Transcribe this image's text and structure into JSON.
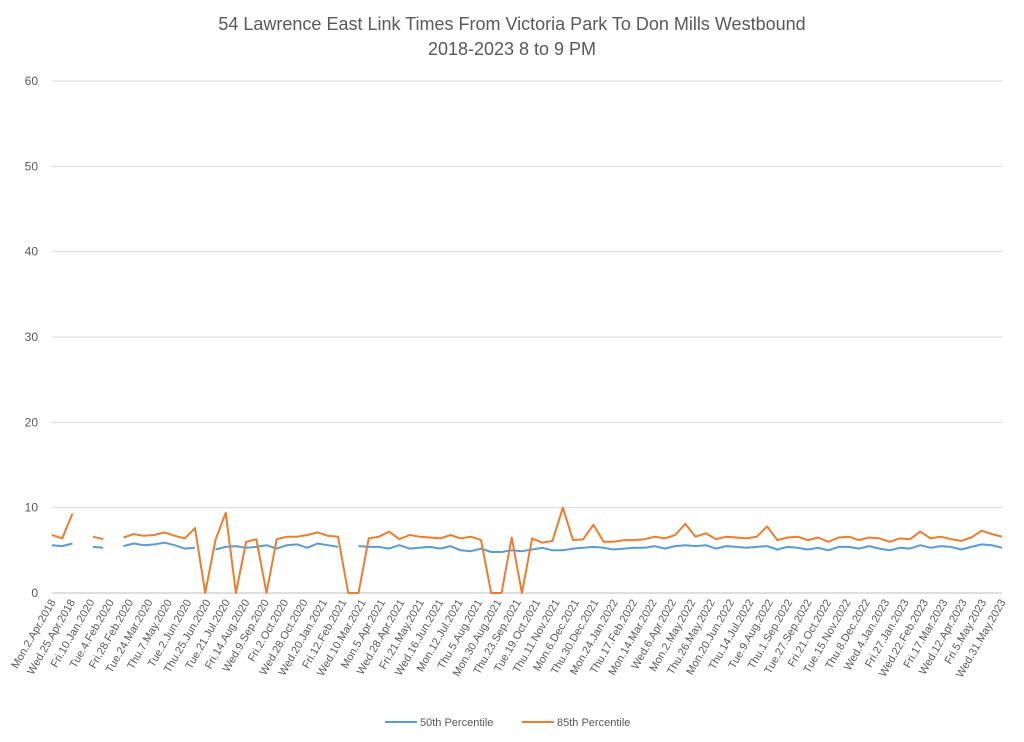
{
  "chart_data": {
    "type": "line",
    "title": "54 Lawrence East Link Times From Victoria Park To Don Mills Westbound",
    "subtitle": "2018-2023 8 to 9 PM",
    "xlabel": "",
    "ylabel": "",
    "ylim": [
      0,
      60
    ],
    "yticks": [
      0,
      10,
      20,
      30,
      40,
      50,
      60
    ],
    "grid": "horizontal",
    "legend_position": "bottom",
    "x_tick_labels": [
      "Mon.2.Apr.2018",
      "Wed.25.Apr.2018",
      "Fri.10.Jan.2020",
      "Tue.4.Feb.2020",
      "Fri.28.Feb.2020",
      "Tue.24.Mar.2020",
      "Thu.7.May.2020",
      "Tue.2.Jun.2020",
      "Thu.25.Jun.2020",
      "Tue.21.Jul.2020",
      "Fri.14.Aug.2020",
      "Wed.9.Sep.2020",
      "Fri.2.Oct.2020",
      "Wed.28.Oct.2020",
      "Wed.20.Jan.2021",
      "Fri.12.Feb.2021",
      "Wed.10.Mar.2021",
      "Mon.5.Apr.2021",
      "Wed.28.Apr.2021",
      "Fri.21.May.2021",
      "Wed.16.Jun.2021",
      "Mon.12.Jul.2021",
      "Thu.5.Aug.2021",
      "Mon.30.Aug.2021",
      "Thu.23.Sep.2021",
      "Tue.19.Oct.2021",
      "Thu.11.Nov.2021",
      "Mon.6.Dec.2021",
      "Thu.30.Dec.2021",
      "Mon.24.Jan.2022",
      "Thu.17.Feb.2022",
      "Mon.14.Mar.2022",
      "Wed.6.Apr.2022",
      "Mon.2.May.2022",
      "Thu.26.May.2022",
      "Mon.20.Jun.2022",
      "Thu.14.Jul.2022",
      "Tue.9.Aug.2022",
      "Thu.1.Sep.2022",
      "Tue.27.Sep.2022",
      "Fri.21.Oct.2022",
      "Tue.15.Nov.2022",
      "Thu.8.Dec.2022",
      "Wed.4.Jan.2023",
      "Fri.27.Jan.2023",
      "Wed.22.Feb.2023",
      "Fri.17.Mar.2023",
      "Wed.12.Apr.2023",
      "Fri.5.May.2023",
      "Wed.31.May.2023"
    ],
    "series": [
      {
        "name": "50th Percentile",
        "color": "#5B9BD5",
        "values": [
          5.6,
          5.5,
          5.8,
          null,
          5.4,
          5.3,
          null,
          5.5,
          5.8,
          5.6,
          5.7,
          5.9,
          5.6,
          5.2,
          5.3,
          null,
          5.1,
          5.4,
          5.5,
          5.3,
          5.4,
          5.6,
          5.2,
          5.6,
          5.7,
          5.3,
          5.8,
          5.6,
          5.4,
          null,
          5.5,
          5.4,
          5.4,
          5.2,
          5.6,
          5.2,
          5.3,
          5.4,
          5.2,
          5.5,
          5.0,
          4.9,
          5.2,
          4.8,
          4.8,
          5.0,
          4.9,
          5.1,
          5.3,
          5.0,
          5.0,
          5.2,
          5.3,
          5.4,
          5.3,
          5.1,
          5.2,
          5.3,
          5.3,
          5.5,
          5.2,
          5.5,
          5.6,
          5.5,
          5.6,
          5.2,
          5.5,
          5.4,
          5.3,
          5.4,
          5.5,
          5.1,
          5.4,
          5.3,
          5.1,
          5.3,
          5.0,
          5.4,
          5.4,
          5.2,
          5.5,
          5.2,
          5.0,
          5.3,
          5.2,
          5.6,
          5.3,
          5.5,
          5.4,
          5.1,
          5.4,
          5.7,
          5.6,
          5.3
        ]
      },
      {
        "name": "85th Percentile",
        "color": "#ED7D31",
        "values": [
          6.8,
          6.4,
          9.3,
          null,
          6.6,
          6.3,
          null,
          6.5,
          6.9,
          6.7,
          6.8,
          7.1,
          6.7,
          6.4,
          7.6,
          0,
          6.2,
          9.4,
          0,
          6.0,
          6.3,
          0,
          6.3,
          6.6,
          6.6,
          6.8,
          7.1,
          6.7,
          6.6,
          0,
          0,
          6.4,
          6.6,
          7.2,
          6.3,
          6.8,
          6.6,
          6.5,
          6.4,
          6.8,
          6.4,
          6.6,
          6.2,
          0,
          0,
          6.5,
          0,
          6.4,
          5.9,
          6.1,
          10.0,
          6.2,
          6.3,
          8.0,
          6.0,
          6.0,
          6.2,
          6.2,
          6.3,
          6.6,
          6.4,
          6.8,
          8.1,
          6.6,
          7.0,
          6.3,
          6.6,
          6.5,
          6.4,
          6.6,
          7.8,
          6.2,
          6.5,
          6.6,
          6.2,
          6.5,
          6.0,
          6.5,
          6.6,
          6.2,
          6.5,
          6.4,
          6.0,
          6.4,
          6.3,
          7.2,
          6.4,
          6.6,
          6.3,
          6.1,
          6.5,
          7.3,
          6.9,
          6.6
        ]
      }
    ]
  }
}
